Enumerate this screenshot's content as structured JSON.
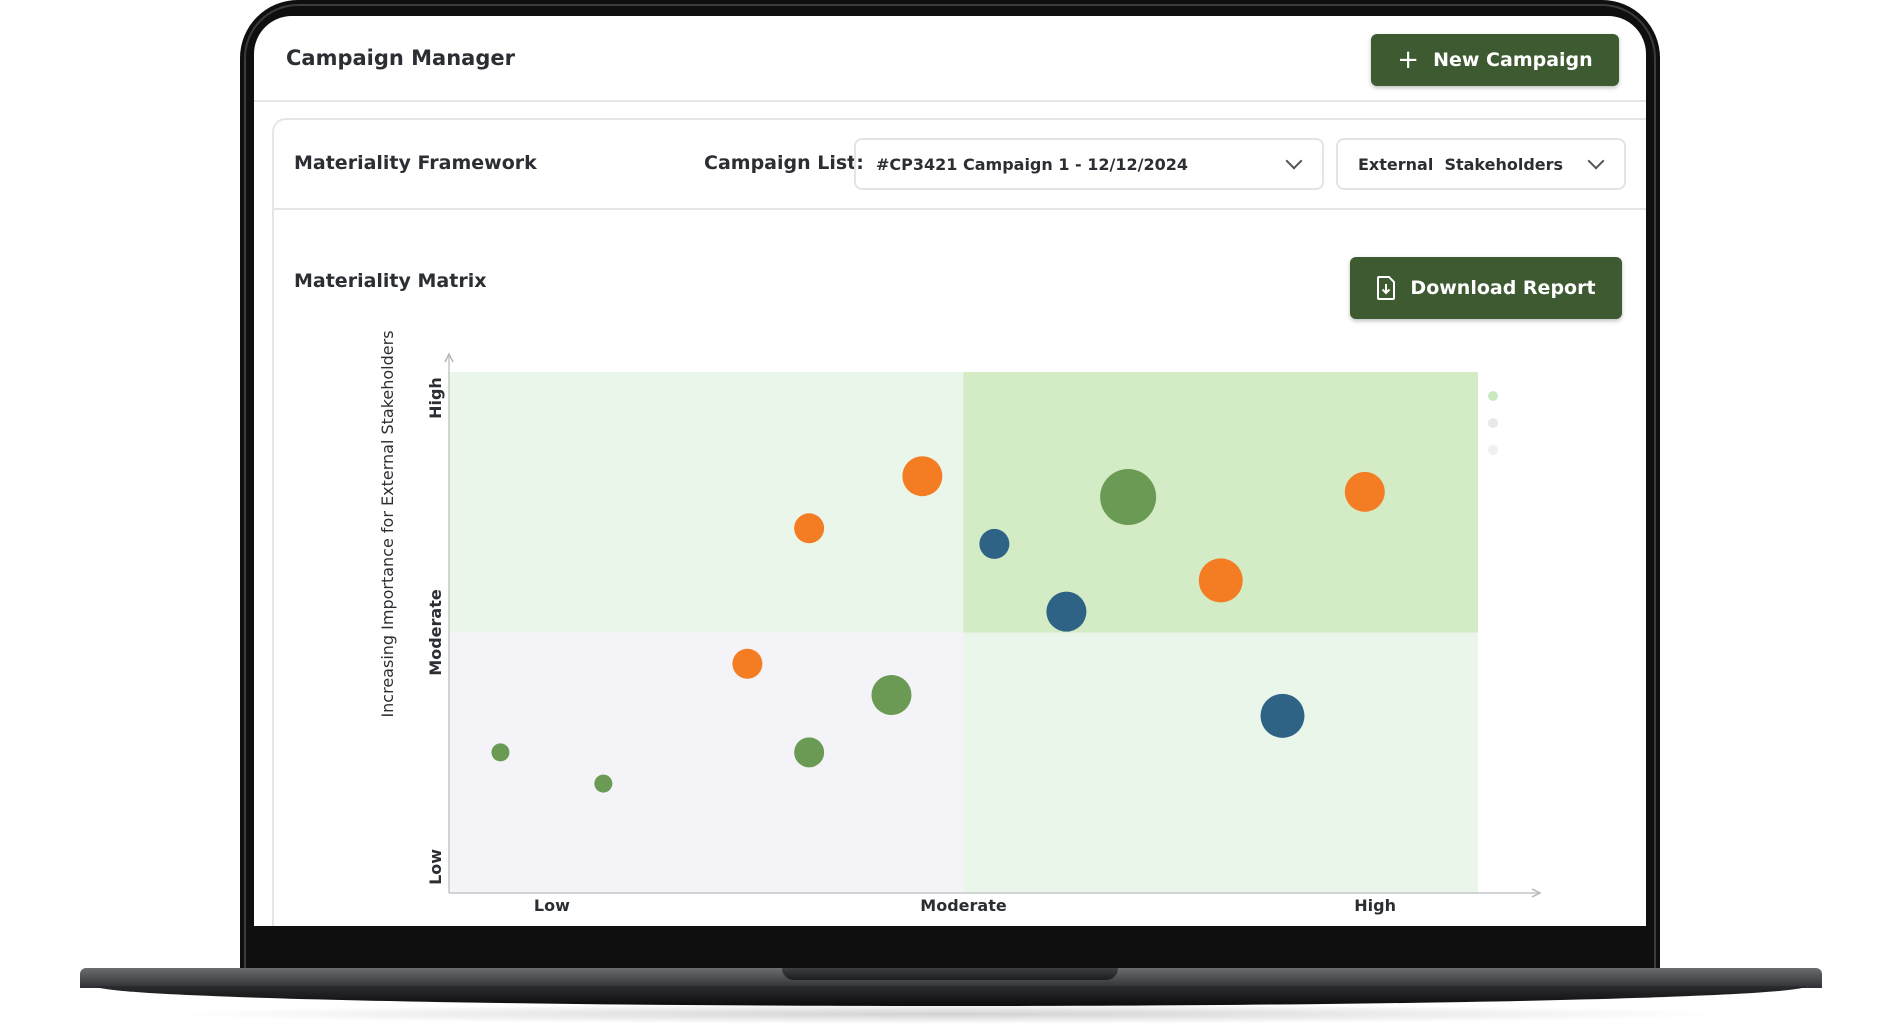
{
  "app": {
    "title": "Campaign Manager",
    "new_campaign_label": "New Campaign",
    "new_campaign_icon": "plus-icon"
  },
  "panel": {
    "framework_title": "Materiality Framework",
    "campaign_list_label": "Campaign List:",
    "campaign_selected": "#CP3421 Campaign 1 - 12/12/2024",
    "stakeholder_selected": "External  Stakeholders",
    "matrix_title": "Materiality Matrix",
    "download_label": "Download Report",
    "download_icon": "file-download-icon"
  },
  "colors": {
    "primary_button": "#3e5a31",
    "orange": "#f47d24",
    "green": "#6a9a53",
    "blue": "#2e6385",
    "quad_low_low": "#f3f3f8",
    "quad_light": "#eaf6ea",
    "quad_high_high": "#d3ecc5"
  },
  "chart_data": {
    "type": "scatter",
    "variant": "bubble",
    "xlabel": "",
    "ylabel": "Increasing Importance for External Stakeholders",
    "x_ticks": [
      "Low",
      "Moderate",
      "High"
    ],
    "y_ticks": [
      "Low",
      "Moderate",
      "High"
    ],
    "xlim": [
      0,
      100
    ],
    "ylim": [
      0,
      100
    ],
    "quadrant_split": {
      "x": 50,
      "y": 50
    },
    "legend": "top-right",
    "points": [
      {
        "x": 46,
        "y": 80,
        "size": 2,
        "color": "orange"
      },
      {
        "x": 35,
        "y": 70,
        "size": 1,
        "color": "orange"
      },
      {
        "x": 53,
        "y": 67,
        "size": 1,
        "color": "blue"
      },
      {
        "x": 66,
        "y": 76,
        "size": 4,
        "color": "green"
      },
      {
        "x": 60,
        "y": 54,
        "size": 2,
        "color": "blue"
      },
      {
        "x": 75,
        "y": 60,
        "size": 3,
        "color": "orange"
      },
      {
        "x": 89,
        "y": 77,
        "size": 2,
        "color": "orange"
      },
      {
        "x": 29,
        "y": 44,
        "size": 1,
        "color": "orange"
      },
      {
        "x": 43,
        "y": 38,
        "size": 2,
        "color": "green"
      },
      {
        "x": 5,
        "y": 27,
        "size": 0,
        "color": "green"
      },
      {
        "x": 15,
        "y": 21,
        "size": 0,
        "color": "green"
      },
      {
        "x": 35,
        "y": 27,
        "size": 1,
        "color": "green"
      },
      {
        "x": 81,
        "y": 34,
        "size": 3,
        "color": "blue"
      }
    ]
  }
}
